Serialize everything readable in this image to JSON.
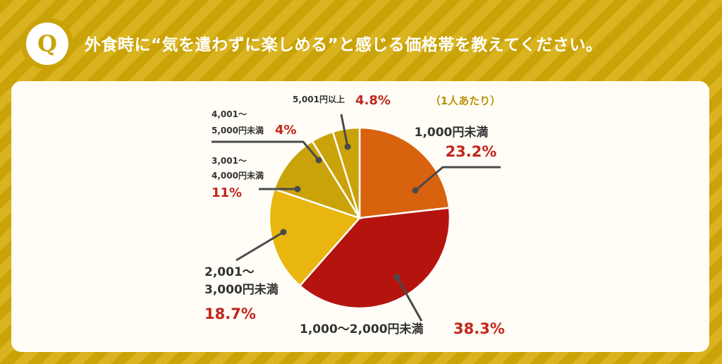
{
  "header": {
    "badge": "Q",
    "question": "外食時に“気を遣わずに楽しめる”と感じる価格帯を教えてください。"
  },
  "chart_data": {
    "type": "pie",
    "note": "（1人あたり）",
    "slices": [
      {
        "label_lines": [
          "1,000円未満"
        ],
        "value": 23.2,
        "pct_text": "23.2%",
        "color": "#d9620f"
      },
      {
        "label_lines": [
          "1,000〜2,000円未満"
        ],
        "value": 38.3,
        "pct_text": "38.3%",
        "color": "#b5140e"
      },
      {
        "label_lines": [
          "2,001〜",
          "3,000円未満"
        ],
        "value": 18.7,
        "pct_text": "18.7%",
        "color": "#e8b60e"
      },
      {
        "label_lines": [
          "3,001〜",
          "4,000円未満"
        ],
        "value": 11,
        "pct_text": "11%",
        "color": "#c9a309"
      },
      {
        "label_lines": [
          "4,001〜",
          "5,000円未満"
        ],
        "value": 4,
        "pct_text": "4%",
        "color": "#c9a309"
      },
      {
        "label_lines": [
          "5,001円以上"
        ],
        "value": 4.8,
        "pct_text": "4.8%",
        "color": "#c9a309"
      }
    ]
  }
}
